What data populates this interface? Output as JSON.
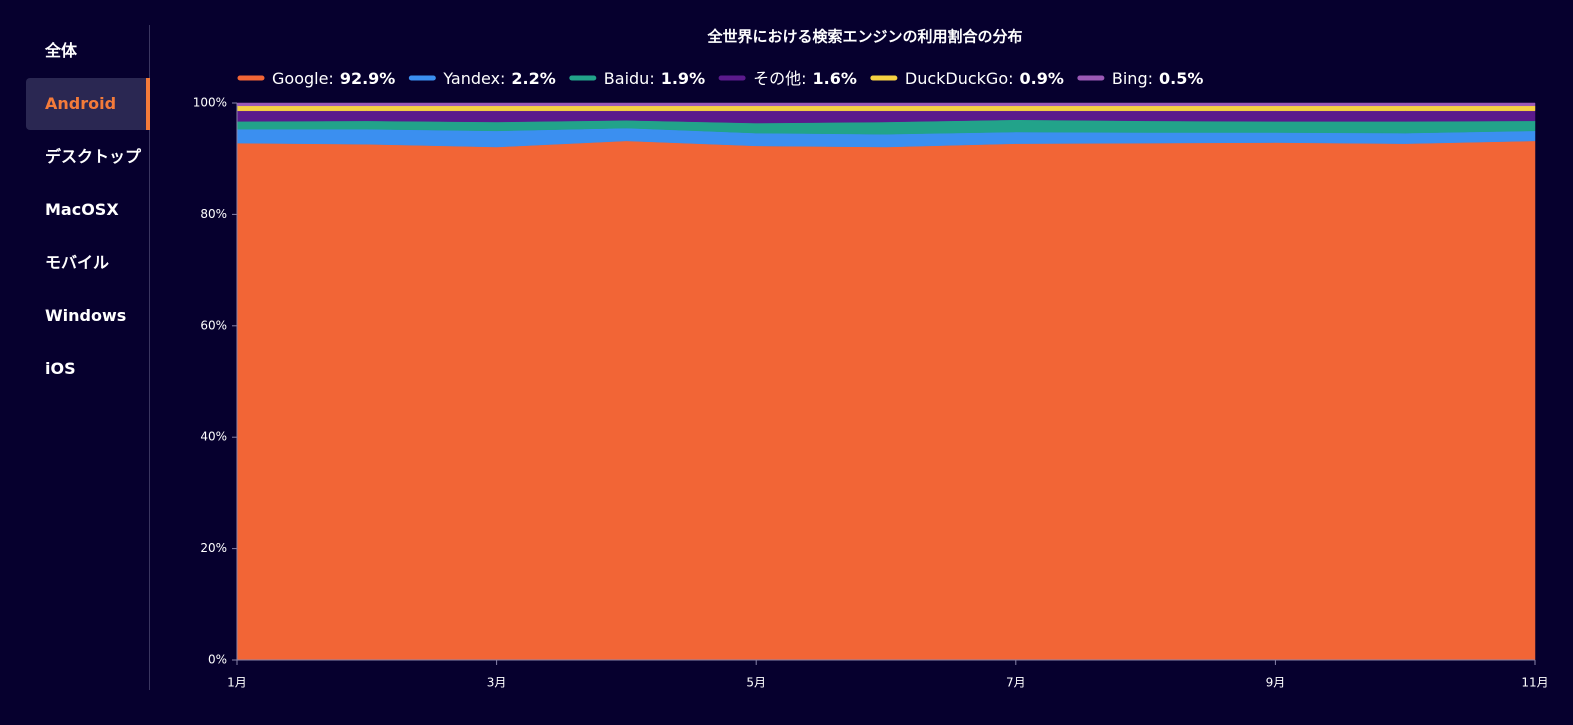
{
  "nav": {
    "items": [
      "全体",
      "Android",
      "デスクトップ",
      "MacOSX",
      "モバイル",
      "Windows",
      "iOS"
    ],
    "active": 1
  },
  "chart_data": {
    "type": "stacked_area",
    "title": "全世界における検索エンジンの利用割合の分布",
    "legend_separator": ":",
    "categories": [
      "1月",
      null,
      "3月",
      null,
      "5月",
      null,
      "7月",
      null,
      "9月",
      null,
      "11月"
    ],
    "series": [
      {
        "name": "Google",
        "share": "92.9%",
        "color": "#f26536",
        "values": [
          92.8,
          92.6,
          92.1,
          93.2,
          92.3,
          92.1,
          92.7,
          92.8,
          92.9,
          92.7,
          93.2
        ]
      },
      {
        "name": "Yandex",
        "share": "2.2%",
        "color": "#3b8ff0",
        "values": [
          2.5,
          2.7,
          2.9,
          2.3,
          2.3,
          2.3,
          2.1,
          1.9,
          1.8,
          1.9,
          1.8
        ]
      },
      {
        "name": "Baidu",
        "share": "1.9%",
        "color": "#22a38a",
        "values": [
          1.4,
          1.5,
          1.6,
          1.4,
          1.8,
          2.2,
          2.2,
          2.1,
          2.0,
          2.1,
          1.8
        ]
      },
      {
        "name": "その他",
        "share": "1.6%",
        "color": "#5b1a8c",
        "values": [
          1.9,
          1.8,
          2.0,
          1.7,
          2.2,
          2.0,
          1.6,
          1.8,
          1.9,
          1.9,
          1.8
        ]
      },
      {
        "name": "DuckDuckGo",
        "share": "0.9%",
        "color": "#f5d142",
        "values": [
          0.9,
          0.9,
          0.9,
          0.9,
          0.9,
          0.9,
          0.9,
          0.9,
          0.9,
          0.9,
          0.9
        ]
      },
      {
        "name": "Bing",
        "share": "0.5%",
        "color": "#9b59b6",
        "values": [
          0.5,
          0.5,
          0.5,
          0.5,
          0.5,
          0.5,
          0.5,
          0.5,
          0.5,
          0.5,
          0.5
        ]
      }
    ],
    "ylim": [
      0,
      100
    ],
    "yticks": [
      {
        "value": 0,
        "label": "0%"
      },
      {
        "value": 20,
        "label": "20%"
      },
      {
        "value": 40,
        "label": "40%"
      },
      {
        "value": 60,
        "label": "60%"
      },
      {
        "value": 80,
        "label": "80%"
      },
      {
        "value": 100,
        "label": "100%"
      }
    ]
  }
}
